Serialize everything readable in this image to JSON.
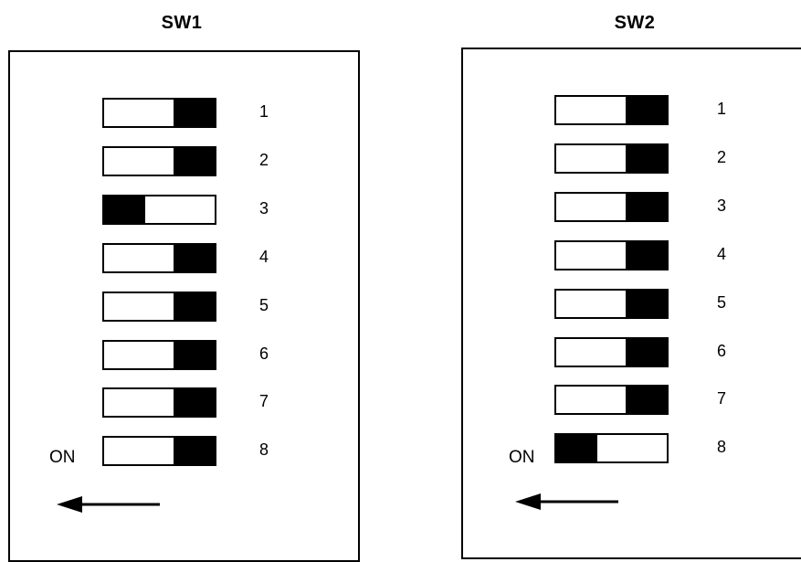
{
  "banks": [
    {
      "title": "SW1",
      "on_label": "ON",
      "positions": [
        {
          "label": "1",
          "on": false
        },
        {
          "label": "2",
          "on": false
        },
        {
          "label": "3",
          "on": true
        },
        {
          "label": "4",
          "on": false
        },
        {
          "label": "5",
          "on": false
        },
        {
          "label": "6",
          "on": false
        },
        {
          "label": "7",
          "on": false
        },
        {
          "label": "8",
          "on": false
        }
      ]
    },
    {
      "title": "SW2",
      "on_label": "ON",
      "positions": [
        {
          "label": "1",
          "on": false
        },
        {
          "label": "2",
          "on": false
        },
        {
          "label": "3",
          "on": false
        },
        {
          "label": "4",
          "on": false
        },
        {
          "label": "5",
          "on": false
        },
        {
          "label": "6",
          "on": false
        },
        {
          "label": "7",
          "on": false
        },
        {
          "label": "8",
          "on": true
        }
      ]
    }
  ]
}
